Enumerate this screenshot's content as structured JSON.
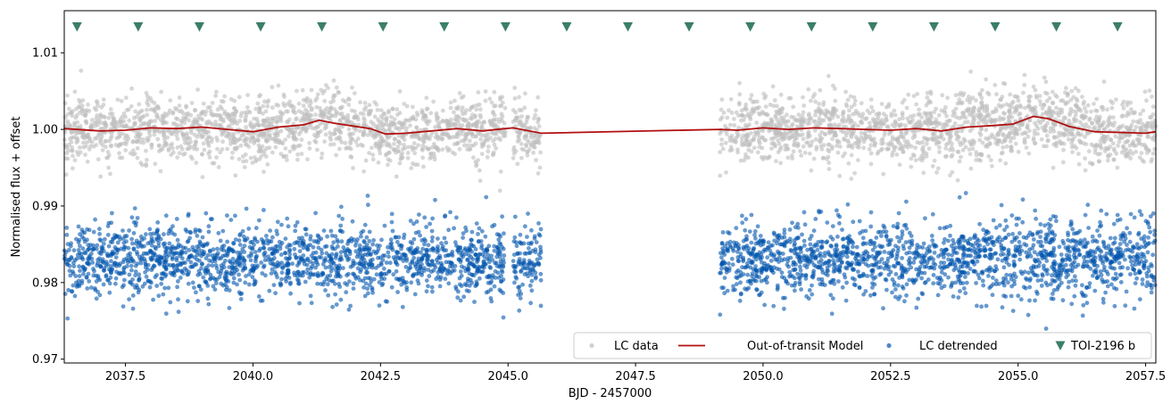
{
  "chart_data": {
    "type": "scatter",
    "xlabel": "BJD - 2457000",
    "ylabel": "Normalised flux + offset",
    "xlim": [
      2036.3,
      2057.7
    ],
    "ylim": [
      0.9695,
      1.0155
    ],
    "x_ticks": [
      2037.5,
      2040.0,
      2042.5,
      2045.0,
      2047.5,
      2050.0,
      2052.5,
      2055.0,
      2057.5
    ],
    "x_tick_labels": [
      "2037.5",
      "2040.0",
      "2042.5",
      "2045.0",
      "2047.5",
      "2050.0",
      "2052.5",
      "2055.0",
      "2057.5"
    ],
    "y_ticks": [
      0.97,
      0.98,
      0.99,
      1.0,
      1.01
    ],
    "y_tick_labels": [
      "0.97",
      "0.98",
      "0.99",
      "1.00",
      "1.01"
    ],
    "data_segments": [
      [
        2036.3,
        2044.95
      ],
      [
        2045.1,
        2045.65
      ],
      [
        2049.15,
        2057.7
      ]
    ],
    "series": [
      {
        "name": "LC data",
        "kind": "scatter",
        "color": "#bfbfbf",
        "center": 1.0,
        "spread": 0.0022
      },
      {
        "name": "Out-of-transit Model",
        "kind": "line",
        "color": "#b20f0f",
        "x": [
          2036.3,
          2037.0,
          2037.5,
          2038.0,
          2038.5,
          2039.0,
          2039.5,
          2040.0,
          2040.5,
          2041.0,
          2041.3,
          2041.6,
          2042.0,
          2042.3,
          2042.6,
          2043.0,
          2043.5,
          2044.0,
          2044.5,
          2044.95,
          2045.1,
          2045.65,
          2049.15,
          2049.5,
          2050.0,
          2050.5,
          2051.0,
          2051.5,
          2052.0,
          2052.5,
          2053.0,
          2053.5,
          2054.0,
          2054.5,
          2054.9,
          2055.3,
          2055.6,
          2056.0,
          2056.5,
          2057.0,
          2057.5,
          2057.7
        ],
        "y": [
          1.0001,
          0.9998,
          0.9999,
          1.0002,
          1.0001,
          1.0003,
          1.0,
          0.9997,
          1.0003,
          1.0006,
          1.0012,
          1.0008,
          1.0004,
          1.0001,
          0.9994,
          0.9995,
          0.9998,
          1.0001,
          0.9998,
          1.0001,
          1.0002,
          0.9995,
          1.0,
          0.9999,
          1.0002,
          1.0,
          1.0002,
          1.0001,
          1.0,
          0.9999,
          1.0001,
          0.9998,
          1.0003,
          1.0005,
          1.0007,
          1.0017,
          1.0014,
          1.0004,
          0.9997,
          0.9996,
          0.9995,
          0.9997
        ]
      },
      {
        "name": "LC detrended",
        "kind": "scatter",
        "color": "#0255ad",
        "center": 0.983,
        "spread": 0.0024
      },
      {
        "name": "TOI-2196 b",
        "kind": "marker",
        "color": "#3b7f66",
        "y": 1.0134,
        "x": [
          2036.55,
          2037.75,
          2038.95,
          2040.15,
          2041.35,
          2042.55,
          2043.75,
          2044.95,
          2046.15,
          2047.35,
          2048.55,
          2049.75,
          2050.95,
          2052.15,
          2053.35,
          2054.55,
          2055.75,
          2056.95
        ]
      }
    ],
    "legend": {
      "placement": "lower-right",
      "entries": [
        "LC data",
        "Out-of-transit Model",
        "LC detrended",
        "TOI-2196 b"
      ]
    }
  }
}
